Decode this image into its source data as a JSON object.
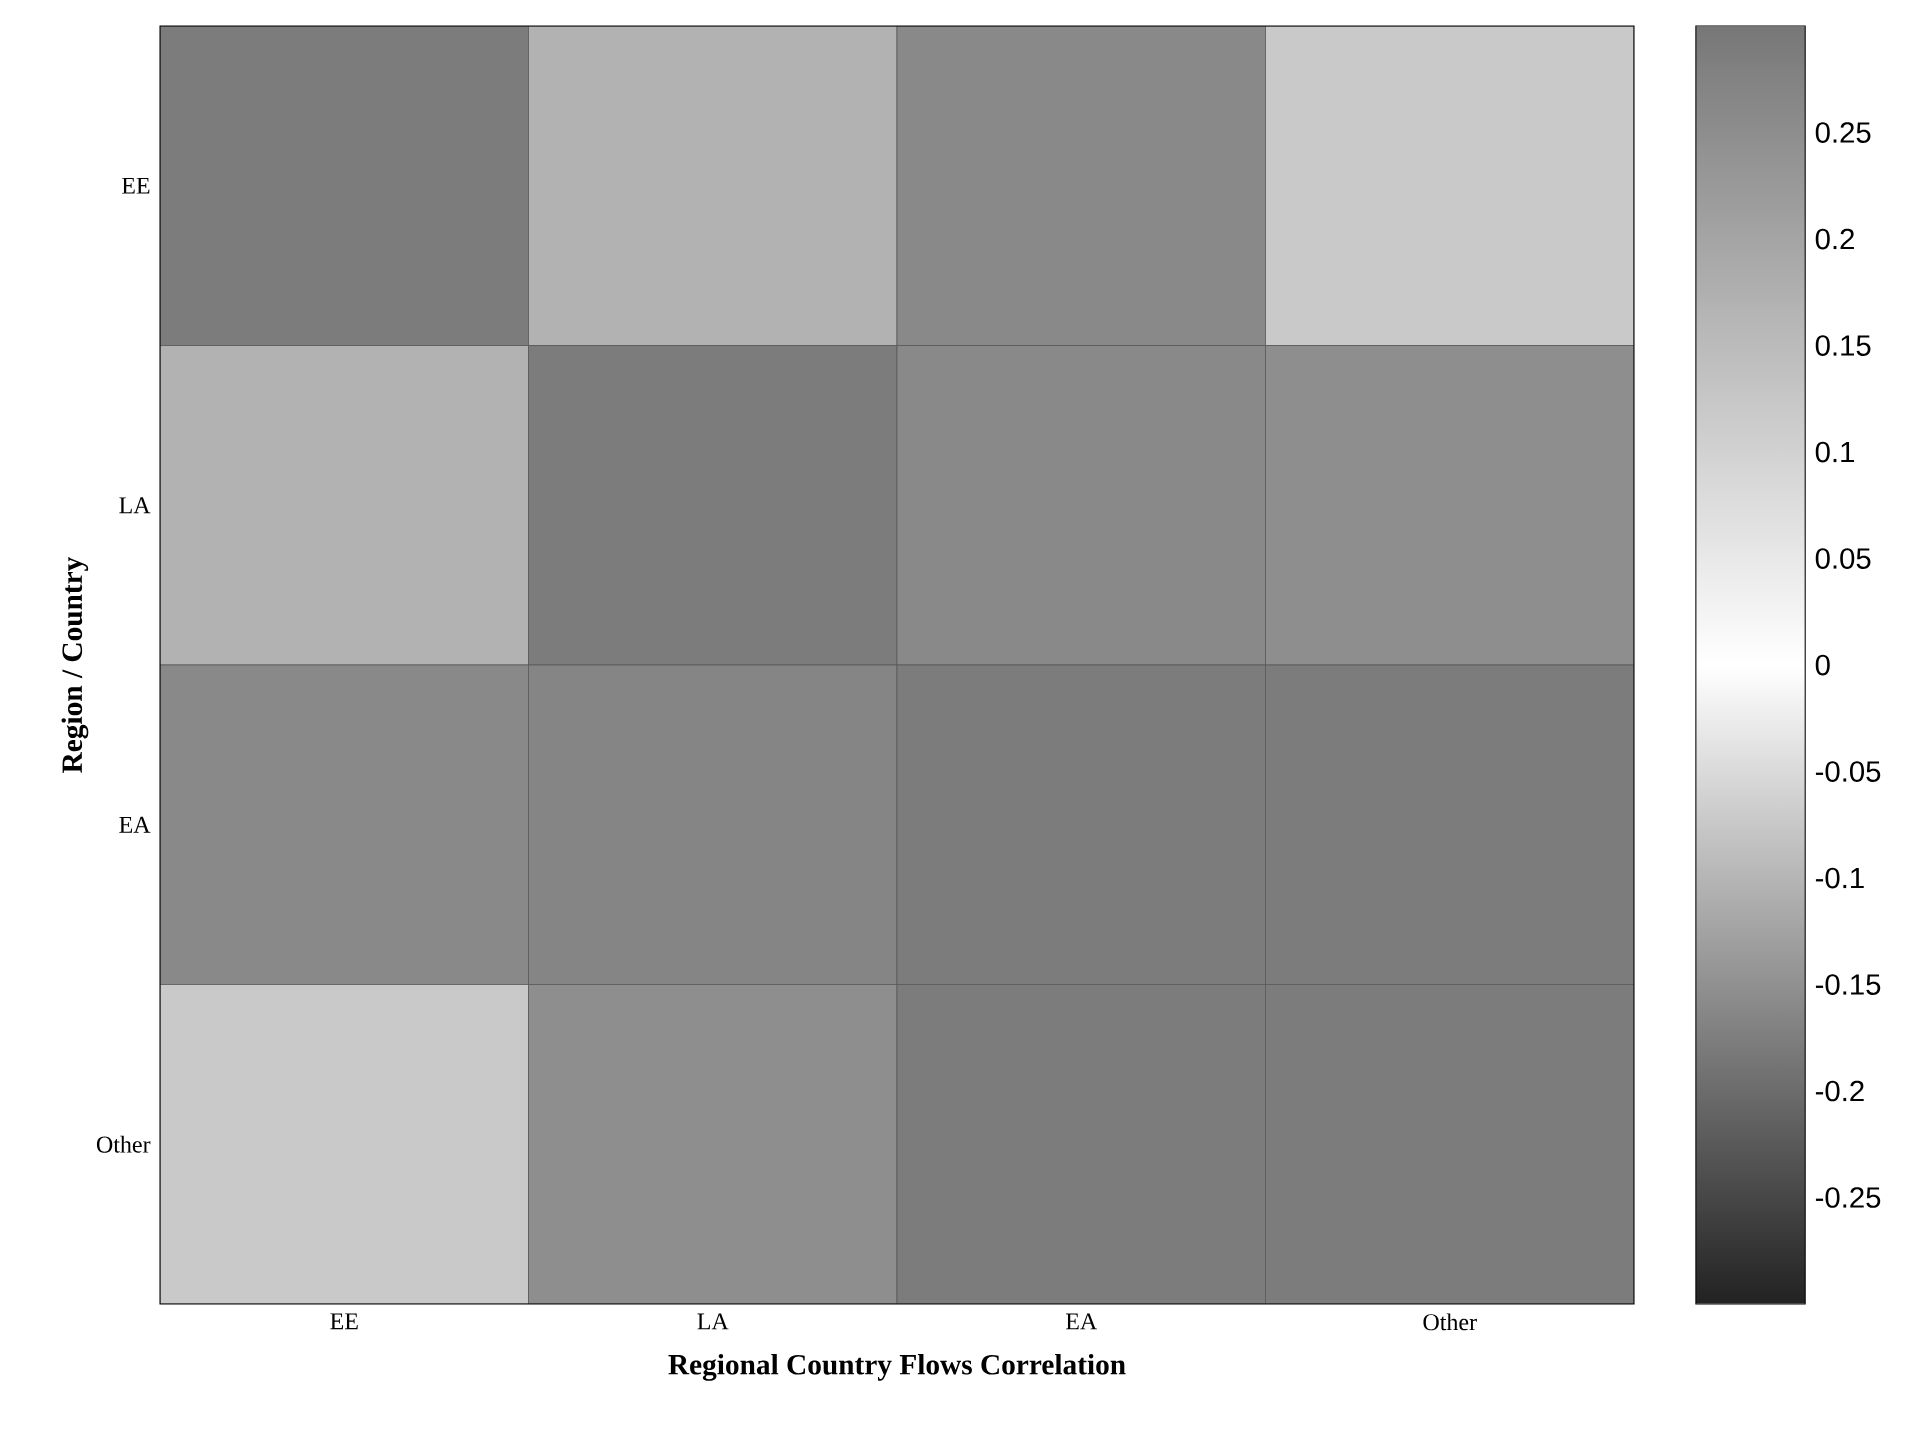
{
  "chart_data": {
    "type": "heatmap",
    "xlabel": "Regional Country Flows Correlation",
    "ylabel": "Region / Country",
    "categories": [
      "EE",
      "LA",
      "EA",
      "Other"
    ],
    "y_categories": [
      "EE",
      "LA",
      "EA",
      "Other"
    ],
    "cells": [
      [
        0.29,
        0.17,
        0.26,
        0.12
      ],
      [
        0.17,
        0.29,
        0.26,
        0.25
      ],
      [
        0.26,
        0.27,
        0.29,
        0.29
      ],
      [
        0.12,
        0.25,
        0.29,
        0.29
      ]
    ],
    "clim": [
      -0.3,
      0.3
    ],
    "cticks": [
      -0.25,
      -0.2,
      -0.15,
      -0.1,
      -0.05,
      0,
      0.05,
      0.1,
      0.15,
      0.2,
      0.25
    ]
  }
}
